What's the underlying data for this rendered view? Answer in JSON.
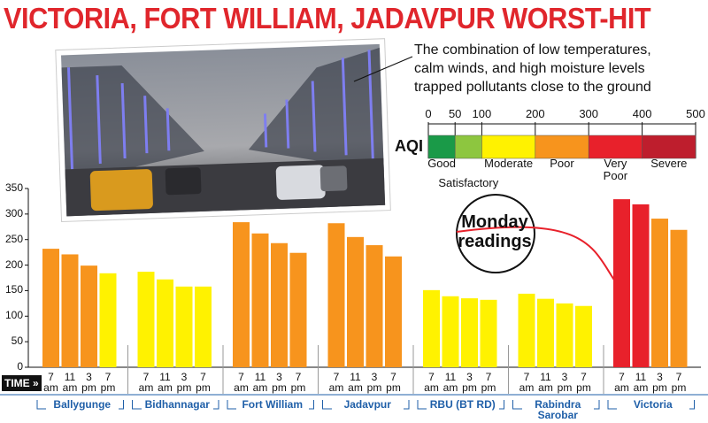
{
  "chart_data": {
    "type": "bar",
    "title": "VICTORIA, FORT WILLIAM, JADAVPUR WORST-HIT",
    "annotation": [
      "The combination of low temperatures,",
      "calm winds, and high moisture levels",
      "trapped pollutants close to the ground"
    ],
    "callout": "Monday readings",
    "x_label": "TIME",
    "categories": [
      "Ballygunge",
      "Bidhannagar",
      "Fort William",
      "Jadavpur",
      "RBU (BT RD)",
      "Rabindra Sarobar",
      "Victoria"
    ],
    "series": [
      {
        "name": "7 am",
        "values": [
          232,
          187,
          284,
          282,
          151,
          144,
          329
        ],
        "colors": [
          "#f7941d",
          "#fff200",
          "#f7941d",
          "#f7941d",
          "#fff200",
          "#fff200",
          "#e8212b"
        ]
      },
      {
        "name": "11 am",
        "values": [
          221,
          172,
          262,
          255,
          139,
          134,
          319
        ],
        "colors": [
          "#f7941d",
          "#fff200",
          "#f7941d",
          "#f7941d",
          "#fff200",
          "#fff200",
          "#e8212b"
        ]
      },
      {
        "name": "3 pm",
        "values": [
          199,
          158,
          243,
          239,
          135,
          125,
          291
        ],
        "colors": [
          "#f7941d",
          "#fff200",
          "#f7941d",
          "#f7941d",
          "#fff200",
          "#fff200",
          "#f7941d"
        ]
      },
      {
        "name": "7 pm",
        "values": [
          184,
          158,
          224,
          217,
          132,
          120,
          269
        ],
        "colors": [
          "#fff200",
          "#fff200",
          "#f7941d",
          "#f7941d",
          "#fff200",
          "#fff200",
          "#f7941d"
        ]
      }
    ],
    "ylim": [
      0,
      350
    ],
    "yticks": [
      0,
      50,
      100,
      150,
      200,
      250,
      300,
      350
    ],
    "aqi_scale": {
      "label": "AQI",
      "ticks": [
        0,
        50,
        100,
        200,
        300,
        400,
        500
      ],
      "bands": [
        {
          "name": "Good",
          "color": "#1a9a48"
        },
        {
          "name": "Satisfactory",
          "color": "#8dc63f"
        },
        {
          "name": "Moderate",
          "color": "#fff200"
        },
        {
          "name": "Poor",
          "color": "#f7941d"
        },
        {
          "name": "Very Poor",
          "color": "#e8212b"
        },
        {
          "name": "Severe",
          "color": "#be1e2d"
        }
      ]
    }
  }
}
